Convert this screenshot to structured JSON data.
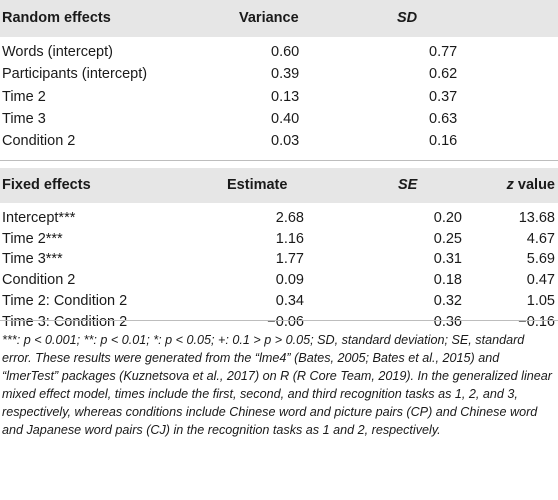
{
  "random": {
    "headers": {
      "effect": "Random effects",
      "variance": "Variance",
      "sd": "SD"
    },
    "rows": [
      {
        "effect": "Words (intercept)",
        "variance": "0.60",
        "sd": "0.77"
      },
      {
        "effect": "Participants (intercept)",
        "variance": "0.39",
        "sd": "0.62"
      },
      {
        "effect": "Time 2",
        "variance": "0.13",
        "sd": "0.37"
      },
      {
        "effect": "Time 3",
        "variance": "0.40",
        "sd": "0.63"
      },
      {
        "effect": "Condition 2",
        "variance": "0.03",
        "sd": "0.16"
      }
    ]
  },
  "fixed": {
    "headers": {
      "effect": "Fixed effects",
      "estimate": "Estimate",
      "se": "SE",
      "z_italic": "z",
      "z_rest": " value"
    },
    "rows": [
      {
        "effect": "Intercept***",
        "estimate": "2.68",
        "se": "0.20",
        "z": "13.68"
      },
      {
        "effect": "Time 2***",
        "estimate": "1.16",
        "se": "0.25",
        "z": "4.67"
      },
      {
        "effect": "Time 3***",
        "estimate": "1.77",
        "se": "0.31",
        "z": "5.69"
      },
      {
        "effect": "Condition 2",
        "estimate": "0.09",
        "se": "0.18",
        "z": "0.47"
      },
      {
        "effect": "Time 2: Condition 2",
        "estimate": "0.34",
        "se": "0.32",
        "z": "1.05"
      },
      {
        "effect": "Time 3: Condition 2",
        "estimate": "−0.06",
        "se": "0.36",
        "z": "−0.16"
      }
    ]
  },
  "footnote": "***: p < 0.001; **: p < 0.01; *: p < 0.05; +: 0.1 > p > 0.05; SD, standard deviation; SE, standard error. These results were generated from the “lme4” (Bates, 2005; Bates et al., 2015) and “lmerTest” packages (Kuznetsova et al., 2017) on R (R Core Team, 2019). In the generalized linear mixed effect model, times include the first, second, and third recognition tasks as 1, 2, and 3, respectively, whereas conditions include Chinese word and picture pairs (CP) and Chinese word and Japanese word pairs (CJ) in the recognition tasks as 1 and 2, respectively."
}
